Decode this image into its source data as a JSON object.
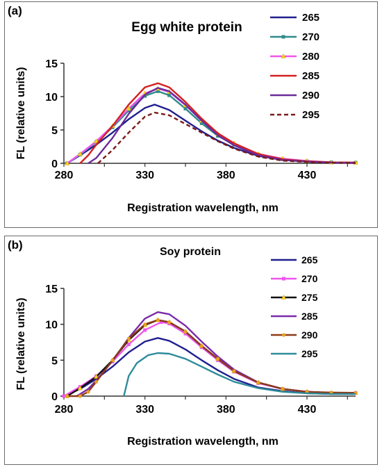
{
  "chart_data": [
    {
      "type": "line",
      "panel_label": "(a)",
      "title": "Egg white protein",
      "xlabel": "Registration wavelength, nm",
      "ylabel": "FL (relative units)",
      "xlim": [
        280,
        460
      ],
      "ylim": [
        0,
        15
      ],
      "xticks": [
        280,
        330,
        380,
        430
      ],
      "yticks": [
        0,
        5,
        10,
        15
      ],
      "grid": false,
      "legend_position": "right",
      "series": [
        {
          "name": "265",
          "color": "#1f1f8f",
          "marker": "none",
          "dash": "none",
          "points": [
            [
              282,
              0
            ],
            [
              290,
              1.2
            ],
            [
              300,
              2.8
            ],
            [
              310,
              4.6
            ],
            [
              320,
              6.6
            ],
            [
              330,
              8.3
            ],
            [
              336,
              8.8
            ],
            [
              345,
              8.0
            ],
            [
              355,
              6.4
            ],
            [
              365,
              4.8
            ],
            [
              375,
              3.4
            ],
            [
              385,
              2.3
            ],
            [
              400,
              1.1
            ],
            [
              415,
              0.5
            ],
            [
              430,
              0.25
            ],
            [
              445,
              0.1
            ],
            [
              460,
              0.05
            ]
          ]
        },
        {
          "name": "270",
          "color": "#2e8b8b",
          "marker": "square",
          "dash": "none",
          "points": [
            [
              282,
              0
            ],
            [
              290,
              1.3
            ],
            [
              300,
              3.2
            ],
            [
              310,
              5.4
            ],
            [
              320,
              7.9
            ],
            [
              330,
              10.1
            ],
            [
              338,
              10.8
            ],
            [
              345,
              10.2
            ],
            [
              355,
              8.2
            ],
            [
              365,
              6.0
            ],
            [
              375,
              4.1
            ],
            [
              385,
              2.8
            ],
            [
              400,
              1.3
            ],
            [
              415,
              0.6
            ],
            [
              430,
              0.3
            ],
            [
              445,
              0.15
            ],
            [
              460,
              0.1
            ]
          ]
        },
        {
          "name": "280",
          "color": "#ee55ee",
          "marker": "triangle",
          "dash": "none",
          "points": [
            [
              282,
              0
            ],
            [
              290,
              1.4
            ],
            [
              300,
              3.3
            ],
            [
              310,
              5.6
            ],
            [
              320,
              8.2
            ],
            [
              330,
              10.5
            ],
            [
              338,
              11.2
            ],
            [
              345,
              10.7
            ],
            [
              355,
              8.7
            ],
            [
              365,
              6.4
            ],
            [
              375,
              4.4
            ],
            [
              385,
              3.0
            ],
            [
              400,
              1.4
            ],
            [
              415,
              0.7
            ],
            [
              430,
              0.35
            ],
            [
              445,
              0.15
            ],
            [
              460,
              0.1
            ]
          ]
        },
        {
          "name": "285",
          "color": "#d42020",
          "marker": "none",
          "dash": "none",
          "points": [
            [
              290,
              0
            ],
            [
              295,
              1.2
            ],
            [
              300,
              2.8
            ],
            [
              310,
              5.6
            ],
            [
              320,
              8.8
            ],
            [
              330,
              11.4
            ],
            [
              338,
              12.0
            ],
            [
              345,
              11.4
            ],
            [
              355,
              9.2
            ],
            [
              365,
              6.7
            ],
            [
              375,
              4.5
            ],
            [
              385,
              3.0
            ],
            [
              400,
              1.4
            ],
            [
              415,
              0.6
            ],
            [
              430,
              0.3
            ],
            [
              445,
              0.15
            ],
            [
              460,
              0.1
            ]
          ]
        },
        {
          "name": "290",
          "color": "#6a2a9a",
          "marker": "none",
          "dash": "none",
          "points": [
            [
              295,
              0
            ],
            [
              300,
              0.8
            ],
            [
              310,
              3.8
            ],
            [
              320,
              7.4
            ],
            [
              330,
              10.3
            ],
            [
              338,
              11.3
            ],
            [
              345,
              10.8
            ],
            [
              355,
              8.8
            ],
            [
              365,
              6.4
            ],
            [
              375,
              4.2
            ],
            [
              385,
              2.7
            ],
            [
              400,
              1.2
            ],
            [
              415,
              0.5
            ],
            [
              430,
              0.25
            ],
            [
              445,
              0.1
            ],
            [
              460,
              0.05
            ]
          ]
        },
        {
          "name": "295",
          "color": "#7a1a1a",
          "marker": "none",
          "dash": "6,4",
          "points": [
            [
              301,
              0
            ],
            [
              310,
              2.0
            ],
            [
              320,
              4.6
            ],
            [
              330,
              7.0
            ],
            [
              336,
              7.6
            ],
            [
              345,
              7.2
            ],
            [
              355,
              5.9
            ],
            [
              365,
              4.6
            ],
            [
              375,
              3.3
            ],
            [
              385,
              2.2
            ],
            [
              400,
              1.0
            ],
            [
              415,
              0.4
            ],
            [
              430,
              0.2
            ],
            [
              445,
              0.1
            ],
            [
              460,
              0.05
            ]
          ]
        }
      ]
    },
    {
      "type": "line",
      "panel_label": "(b)",
      "title": "Soy protein",
      "xlabel": "Registration wavelength, nm",
      "ylabel": "FL (relative units)",
      "xlim": [
        280,
        460
      ],
      "ylim": [
        0,
        15
      ],
      "xticks": [
        280,
        330,
        380,
        430
      ],
      "yticks": [
        0,
        5,
        10,
        15
      ],
      "grid": false,
      "legend_position": "right",
      "series": [
        {
          "name": "265",
          "color": "#1f1f8f",
          "marker": "none",
          "dash": "none",
          "points": [
            [
              280,
              0
            ],
            [
              290,
              1.0
            ],
            [
              300,
              2.4
            ],
            [
              310,
              4.1
            ],
            [
              320,
              6.1
            ],
            [
              330,
              7.6
            ],
            [
              338,
              8.1
            ],
            [
              345,
              7.7
            ],
            [
              355,
              6.5
            ],
            [
              365,
              5.0
            ],
            [
              375,
              3.6
            ],
            [
              385,
              2.4
            ],
            [
              400,
              1.2
            ],
            [
              415,
              0.7
            ],
            [
              430,
              0.4
            ],
            [
              445,
              0.3
            ],
            [
              460,
              0.3
            ]
          ]
        },
        {
          "name": "270",
          "color": "#ee55ee",
          "marker": "square",
          "dash": "none",
          "points": [
            [
              280,
              0
            ],
            [
              290,
              1.3
            ],
            [
              300,
              2.8
            ],
            [
              310,
              4.8
            ],
            [
              320,
              7.2
            ],
            [
              330,
              9.2
            ],
            [
              340,
              10.3
            ],
            [
              345,
              10.1
            ],
            [
              355,
              8.7
            ],
            [
              365,
              6.8
            ],
            [
              375,
              5.0
            ],
            [
              385,
              3.4
            ],
            [
              400,
              1.8
            ],
            [
              415,
              1.0
            ],
            [
              430,
              0.6
            ],
            [
              445,
              0.45
            ],
            [
              460,
              0.45
            ]
          ]
        },
        {
          "name": "275",
          "color": "#111111",
          "marker": "triangle",
          "dash": "none",
          "points": [
            [
              282,
              0
            ],
            [
              290,
              1.1
            ],
            [
              300,
              2.7
            ],
            [
              310,
              5.0
            ],
            [
              320,
              7.8
            ],
            [
              330,
              9.9
            ],
            [
              338,
              10.6
            ],
            [
              345,
              10.3
            ],
            [
              355,
              9.0
            ],
            [
              365,
              7.0
            ],
            [
              375,
              5.2
            ],
            [
              385,
              3.5
            ],
            [
              400,
              1.9
            ],
            [
              415,
              1.0
            ],
            [
              430,
              0.6
            ],
            [
              445,
              0.45
            ],
            [
              460,
              0.45
            ]
          ]
        },
        {
          "name": "285",
          "color": "#7a2aa8",
          "marker": "none",
          "dash": "none",
          "points": [
            [
              288,
              0
            ],
            [
              295,
              1.0
            ],
            [
              300,
              2.2
            ],
            [
              310,
              4.9
            ],
            [
              320,
              8.1
            ],
            [
              330,
              10.8
            ],
            [
              338,
              11.7
            ],
            [
              345,
              11.4
            ],
            [
              355,
              9.8
            ],
            [
              365,
              7.6
            ],
            [
              375,
              5.5
            ],
            [
              385,
              3.7
            ],
            [
              400,
              1.9
            ],
            [
              415,
              1.0
            ],
            [
              430,
              0.6
            ],
            [
              445,
              0.45
            ],
            [
              460,
              0.45
            ]
          ]
        },
        {
          "name": "290",
          "color": "#8b3a1a",
          "marker": "dot",
          "dash": "none",
          "points": [
            [
              282,
              0
            ],
            [
              290,
              0
            ],
            [
              295,
              0.6
            ],
            [
              300,
              2.0
            ],
            [
              310,
              5.0
            ],
            [
              320,
              8.0
            ],
            [
              330,
              10.0
            ],
            [
              338,
              10.6
            ],
            [
              345,
              10.3
            ],
            [
              355,
              9.0
            ],
            [
              365,
              7.0
            ],
            [
              375,
              5.2
            ],
            [
              385,
              3.5
            ],
            [
              400,
              1.9
            ],
            [
              415,
              1.0
            ],
            [
              430,
              0.6
            ],
            [
              445,
              0.5
            ],
            [
              460,
              0.45
            ]
          ]
        },
        {
          "name": "295",
          "color": "#2e8b9a",
          "marker": "none",
          "dash": "none",
          "points": [
            [
              317,
              0
            ],
            [
              320,
              2.8
            ],
            [
              325,
              4.6
            ],
            [
              332,
              5.7
            ],
            [
              338,
              6.0
            ],
            [
              345,
              5.9
            ],
            [
              355,
              5.2
            ],
            [
              365,
              4.1
            ],
            [
              375,
              3.0
            ],
            [
              385,
              2.0
            ],
            [
              400,
              1.1
            ],
            [
              415,
              0.6
            ],
            [
              430,
              0.4
            ],
            [
              445,
              0.3
            ],
            [
              460,
              0.3
            ]
          ]
        }
      ]
    }
  ]
}
